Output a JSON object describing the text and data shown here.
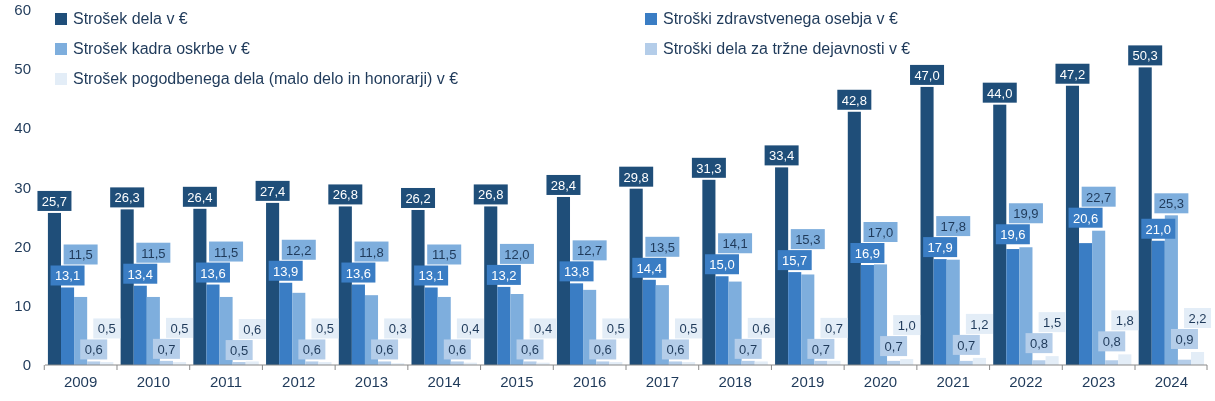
{
  "chart_data": {
    "type": "bar",
    "categories": [
      "2009",
      "2010",
      "2011",
      "2012",
      "2013",
      "2014",
      "2015",
      "2016",
      "2017",
      "2018",
      "2019",
      "2020",
      "2021",
      "2022",
      "2023",
      "2024"
    ],
    "series": [
      {
        "name": "Strošek dela v €",
        "color": "#1f4e79",
        "values": [
          25.7,
          26.3,
          26.4,
          27.4,
          26.8,
          26.2,
          26.8,
          28.4,
          29.8,
          31.3,
          33.4,
          42.8,
          47.0,
          44.0,
          47.2,
          50.3
        ],
        "value_labels": [
          "25,7",
          "26,3",
          "26,4",
          "27,4",
          "26,8",
          "26,2",
          "26,8",
          "28,4",
          "29,8",
          "31,3",
          "33,4",
          "42,8",
          "47,0",
          "44,0",
          "47,2",
          "50,3"
        ]
      },
      {
        "name": "Stroški zdravstvenega osebja v €",
        "color": "#3a7dc4",
        "values": [
          13.1,
          13.4,
          13.6,
          13.9,
          13.6,
          13.1,
          13.2,
          13.8,
          14.4,
          15.0,
          15.7,
          16.9,
          17.9,
          19.6,
          20.6,
          21.0
        ],
        "value_labels": [
          "13,1",
          "13,4",
          "13,6",
          "13,9",
          "13,6",
          "13,1",
          "13,2",
          "13,8",
          "14,4",
          "15,0",
          "15,7",
          "16,9",
          "17,9",
          "19,6",
          "20,6",
          "21,0"
        ]
      },
      {
        "name": "Strošek kadra oskrbe v €",
        "color": "#7eaedd",
        "values": [
          11.5,
          11.5,
          11.5,
          12.2,
          11.8,
          11.5,
          12.0,
          12.7,
          13.5,
          14.1,
          15.3,
          17.0,
          17.8,
          19.9,
          22.7,
          25.3
        ],
        "value_labels": [
          "11,5",
          "11,5",
          "11,5",
          "12,2",
          "11,8",
          "11,5",
          "12,0",
          "12,7",
          "13,5",
          "14,1",
          "15,3",
          "17,0",
          "17,8",
          "19,9",
          "22,7",
          "25,3"
        ]
      },
      {
        "name": "Stroški dela za tržne dejavnosti v €",
        "color": "#b4cde9",
        "values": [
          0.6,
          0.7,
          0.5,
          0.6,
          0.6,
          0.6,
          0.6,
          0.6,
          0.6,
          0.7,
          0.7,
          0.7,
          0.7,
          0.8,
          0.8,
          0.9
        ],
        "value_labels": [
          "0,6",
          "0,7",
          "0,5",
          "0,6",
          "0,6",
          "0,6",
          "0,6",
          "0,6",
          "0,6",
          "0,7",
          "0,7",
          "0,7",
          "0,7",
          "0,8",
          "0,8",
          "0,9"
        ]
      },
      {
        "name": "Strošek pogodbenega dela (malo delo in honorarji) v €",
        "color": "#e3edf7",
        "values": [
          0.5,
          0.5,
          0.6,
          0.5,
          0.3,
          0.4,
          0.4,
          0.5,
          0.5,
          0.6,
          0.7,
          1.0,
          1.2,
          1.5,
          1.8,
          2.2
        ],
        "value_labels": [
          "0,5",
          "0,5",
          "0,6",
          "0,5",
          "0,3",
          "0,4",
          "0,4",
          "0,5",
          "0,5",
          "0,6",
          "0,7",
          "1,0",
          "1,2",
          "1,5",
          "1,8",
          "2,2"
        ]
      }
    ],
    "ylim": [
      0,
      60
    ],
    "yticks": [
      0,
      10,
      20,
      30,
      40,
      50,
      60
    ],
    "grid": false,
    "legend": "top"
  }
}
